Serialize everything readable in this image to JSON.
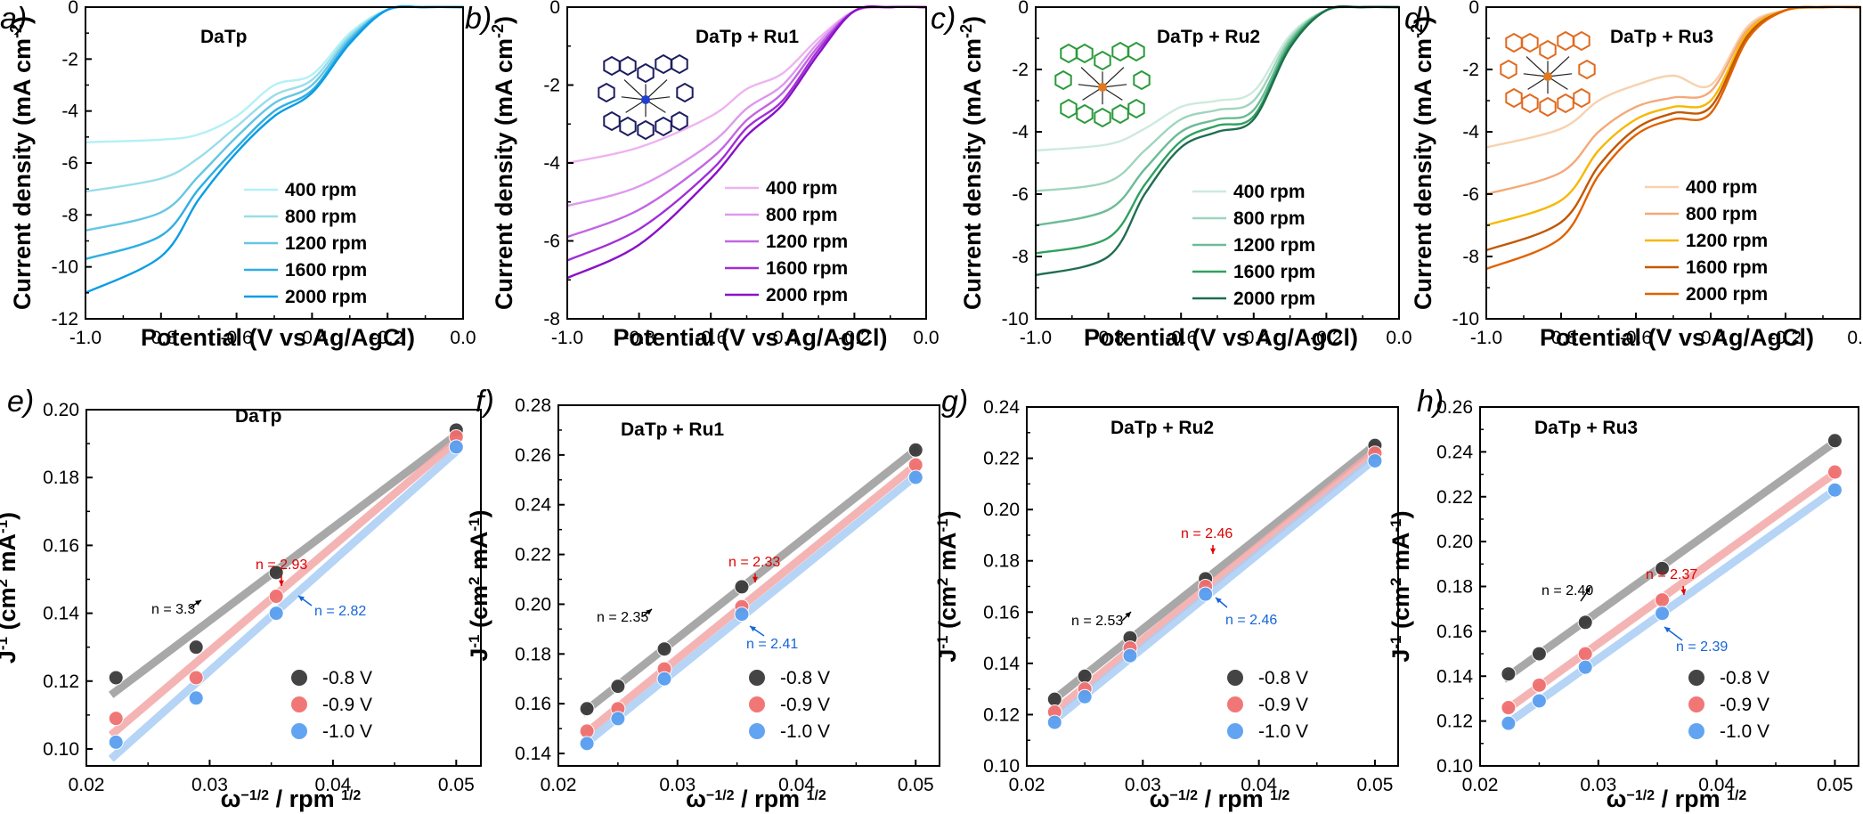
{
  "figure": {
    "panels_top": [
      {
        "letter": "a)",
        "title": "DaTp",
        "series_names": [
          "400 rpm",
          "800 rpm",
          "1200 rpm",
          "1600 rpm",
          "2000 rpm"
        ],
        "colors": [
          "#b3f0f7",
          "#99ddea",
          "#66c6e4",
          "#30aee3",
          "#0a9ce6"
        ],
        "yticks": [
          "0",
          "-2",
          "-4",
          "-6",
          "-8",
          "-10",
          "-12"
        ],
        "ylim": [
          -12,
          0
        ],
        "limits": [
          -5.2,
          -7.1,
          -8.6,
          -9.7,
          -11.0
        ]
      },
      {
        "letter": "b)",
        "title": "DaTp  + Ru1",
        "series_names": [
          "400 rpm",
          "800 rpm",
          "1200 rpm",
          "1600 rpm",
          "2000 rpm"
        ],
        "colors": [
          "#eeb3f0",
          "#dd99ee",
          "#c266e2",
          "#a02fd6",
          "#8a10c8"
        ],
        "yticks": [
          "0",
          "-2",
          "-4",
          "-6",
          "-8"
        ],
        "ylim": [
          -8,
          0
        ],
        "limits": [
          -4.0,
          -5.1,
          -5.9,
          -6.5,
          -6.95
        ]
      },
      {
        "letter": "c)",
        "title": "DaTp  + Ru2",
        "series_names": [
          "400 rpm",
          "800 rpm",
          "1200 rpm",
          "1600 rpm",
          "2000 rpm"
        ],
        "colors": [
          "#cdeadd",
          "#9fd4bd",
          "#6dbb97",
          "#2fa15f",
          "#1f6e4f"
        ],
        "yticks": [
          "0",
          "-2",
          "-4",
          "-6",
          "-8",
          "-10"
        ],
        "ylim": [
          -10,
          0
        ],
        "limits": [
          -4.6,
          -5.9,
          -7.0,
          -7.9,
          -8.6
        ]
      },
      {
        "letter": "d)",
        "title": "DaTp  + Ru3",
        "series_names": [
          "400 rpm",
          "800 rpm",
          "1200 rpm",
          "1600 rpm",
          "2000 rpm"
        ],
        "colors": [
          "#f7d1ad",
          "#f4a978",
          "#f6b800",
          "#c25800",
          "#e06200"
        ],
        "yticks": [
          "0",
          "-2",
          "-4",
          "-6",
          "-8",
          "-10"
        ],
        "ylim": [
          -10,
          0
        ],
        "limits": [
          -4.5,
          -6.0,
          -7.0,
          -7.8,
          -8.4
        ]
      }
    ],
    "top_xticks": [
      "-1.0",
      "-0.8",
      "-0.6",
      "-0.4",
      "-0.2",
      "0.0"
    ],
    "top_xlabel": "Potential (V vs Ag/AgCl)",
    "top_ylabel": "Current density (mA cm",
    "top_ylabel_sup": "-2",
    "top_ylabel_close": ")",
    "panels_bottom": [
      {
        "letter": "e)",
        "title": "DaTp",
        "yticks": [
          "0.10",
          "0.12",
          "0.14",
          "0.16",
          "0.18",
          "0.20"
        ],
        "ylim": [
          0.095,
          0.2
        ],
        "n_labels": {
          "black": "n = 3.3",
          "red": "n = 2.93",
          "blue": "n = 2.82"
        }
      },
      {
        "letter": "f)",
        "title": "DaTp + Ru1",
        "yticks": [
          "0.14",
          "0.16",
          "0.18",
          "0.20",
          "0.22",
          "0.24",
          "0.26",
          "0.28"
        ],
        "ylim": [
          0.135,
          0.28
        ],
        "n_labels": {
          "black": "n = 2.35",
          "red": "n = 2.33",
          "blue": "n = 2.41"
        }
      },
      {
        "letter": "g)",
        "title": "DaTp + Ru2",
        "yticks": [
          "0.10",
          "0.12",
          "0.14",
          "0.16",
          "0.18",
          "0.20",
          "0.22",
          "0.24"
        ],
        "ylim": [
          0.1,
          0.24
        ],
        "n_labels": {
          "black": "n = 2.53",
          "red": "n = 2.46",
          "blue": "n = 2.46"
        }
      },
      {
        "letter": "h)",
        "title": "DaTp + Ru3",
        "yticks": [
          "0.10",
          "0.12",
          "0.14",
          "0.16",
          "0.18",
          "0.20",
          "0.22",
          "0.24",
          "0.26"
        ],
        "ylim": [
          0.1,
          0.26
        ],
        "n_labels": {
          "black": "n = 2.40",
          "red": "n = 2.37",
          "blue": "n = 2.39"
        }
      }
    ],
    "bottom_xticks": [
      "0.02",
      "0.03",
      "0.04",
      "0.05"
    ],
    "bottom_xlabel_main": "ω",
    "bottom_xlabel_sup": "−1/2",
    "bottom_xlabel_rest": " / rpm ",
    "bottom_xlabel_sup2": "1/2",
    "bottom_ylabel_main": "J",
    "bottom_ylabel_sup": "-1",
    "bottom_ylabel_rest": " (cm",
    "bottom_ylabel_sup2": "2",
    "bottom_ylabel_rest2": " mA",
    "bottom_ylabel_sup3": "-1",
    "bottom_ylabel_close": ")",
    "bottom_legend": [
      "-0.8 V",
      "-0.9 V",
      "-1.0 V"
    ],
    "bottom_colors": {
      "black": "#3a3a3a",
      "red": "#f07070",
      "blue": "#5a9ff0",
      "line_black": "#9a9a9a",
      "line_red": "#f4a8a8",
      "line_blue": "#a9cdf5",
      "n_black": "#000000",
      "n_red": "#e00000",
      "n_blue": "#1565d8"
    }
  },
  "chart_data": [
    {
      "type": "line",
      "title": "DaTp",
      "xlabel": "Potential (V vs Ag/AgCl)",
      "ylabel": "Current density (mA cm-2)",
      "xlim": [
        -1.0,
        0.0
      ],
      "ylim": [
        -12,
        0
      ],
      "series": [
        {
          "name": "400 rpm",
          "x": [
            -1.0,
            -0.8,
            -0.7,
            -0.6,
            -0.5,
            -0.4,
            -0.3,
            -0.2,
            -0.1,
            0.0
          ],
          "values": [
            -5.2,
            -5.1,
            -4.9,
            -4.2,
            -3.0,
            -2.6,
            -1.0,
            -0.1,
            0.0,
            0.0
          ]
        },
        {
          "name": "800 rpm",
          "x": [
            -1.0,
            -0.8,
            -0.7,
            -0.6,
            -0.5,
            -0.4,
            -0.3,
            -0.2,
            -0.1,
            0.0
          ],
          "values": [
            -7.1,
            -6.6,
            -5.8,
            -4.6,
            -3.4,
            -2.8,
            -1.1,
            -0.1,
            0.0,
            0.0
          ]
        },
        {
          "name": "1200 rpm",
          "x": [
            -1.0,
            -0.8,
            -0.7,
            -0.6,
            -0.5,
            -0.4,
            -0.3,
            -0.2,
            -0.1,
            0.0
          ],
          "values": [
            -8.6,
            -7.9,
            -6.5,
            -5.0,
            -3.7,
            -3.0,
            -1.2,
            -0.1,
            0.0,
            0.0
          ]
        },
        {
          "name": "1600 rpm",
          "x": [
            -1.0,
            -0.8,
            -0.7,
            -0.6,
            -0.5,
            -0.4,
            -0.3,
            -0.2,
            -0.1,
            0.0
          ],
          "values": [
            -9.7,
            -8.8,
            -7.0,
            -5.4,
            -4.0,
            -3.2,
            -1.3,
            -0.1,
            0.0,
            0.0
          ]
        },
        {
          "name": "2000 rpm",
          "x": [
            -1.0,
            -0.8,
            -0.7,
            -0.6,
            -0.5,
            -0.4,
            -0.3,
            -0.2,
            -0.1,
            0.0
          ],
          "values": [
            -11.0,
            -9.6,
            -7.4,
            -5.6,
            -4.2,
            -3.3,
            -1.4,
            -0.1,
            0.0,
            0.0
          ]
        }
      ]
    },
    {
      "type": "line",
      "title": "DaTp  + Ru1",
      "xlabel": "Potential (V vs Ag/AgCl)",
      "ylabel": "Current density (mA cm-2)",
      "xlim": [
        -1.0,
        0.0
      ],
      "ylim": [
        -8,
        0
      ],
      "series": [
        {
          "name": "400 rpm",
          "x": [
            -1.0,
            -0.8,
            -0.6,
            -0.5,
            -0.4,
            -0.3,
            -0.2,
            -0.1,
            0.0
          ],
          "values": [
            -4.0,
            -3.6,
            -2.8,
            -2.1,
            -1.7,
            -0.8,
            -0.1,
            0.0,
            0.0
          ]
        },
        {
          "name": "800 rpm",
          "x": [
            -1.0,
            -0.8,
            -0.6,
            -0.5,
            -0.4,
            -0.3,
            -0.2,
            -0.1,
            0.0
          ],
          "values": [
            -5.1,
            -4.6,
            -3.5,
            -2.6,
            -2.0,
            -0.9,
            -0.1,
            0.0,
            0.0
          ]
        },
        {
          "name": "1200 rpm",
          "x": [
            -1.0,
            -0.8,
            -0.6,
            -0.5,
            -0.4,
            -0.3,
            -0.2,
            -0.1,
            0.0
          ],
          "values": [
            -5.9,
            -5.2,
            -3.9,
            -2.9,
            -2.2,
            -1.0,
            -0.1,
            0.0,
            0.0
          ]
        },
        {
          "name": "1600 rpm",
          "x": [
            -1.0,
            -0.8,
            -0.6,
            -0.5,
            -0.4,
            -0.3,
            -0.2,
            -0.1,
            0.0
          ],
          "values": [
            -6.5,
            -5.7,
            -4.2,
            -3.1,
            -2.4,
            -1.1,
            -0.1,
            0.0,
            0.0
          ]
        },
        {
          "name": "2000 rpm",
          "x": [
            -1.0,
            -0.8,
            -0.6,
            -0.5,
            -0.4,
            -0.3,
            -0.2,
            -0.1,
            0.0
          ],
          "values": [
            -6.95,
            -6.1,
            -4.4,
            -3.3,
            -2.5,
            -1.2,
            -0.1,
            0.0,
            0.0
          ]
        }
      ]
    },
    {
      "type": "line",
      "title": "DaTp  + Ru2",
      "xlabel": "Potential (V vs Ag/AgCl)",
      "ylabel": "Current density (mA cm-2)",
      "xlim": [
        -1.0,
        0.0
      ],
      "ylim": [
        -10,
        0
      ],
      "series": [
        {
          "name": "400 rpm",
          "x": [
            -1.0,
            -0.8,
            -0.7,
            -0.6,
            -0.5,
            -0.4,
            -0.3,
            -0.2,
            -0.1,
            0.0
          ],
          "values": [
            -4.6,
            -4.4,
            -3.9,
            -3.2,
            -3.0,
            -2.7,
            -0.9,
            -0.1,
            0.0,
            0.0
          ]
        },
        {
          "name": "800 rpm",
          "x": [
            -1.0,
            -0.8,
            -0.7,
            -0.6,
            -0.5,
            -0.4,
            -0.3,
            -0.2,
            -0.1,
            0.0
          ],
          "values": [
            -5.9,
            -5.6,
            -4.6,
            -3.6,
            -3.3,
            -3.0,
            -1.0,
            -0.1,
            0.0,
            0.0
          ]
        },
        {
          "name": "1200 rpm",
          "x": [
            -1.0,
            -0.8,
            -0.7,
            -0.6,
            -0.5,
            -0.4,
            -0.3,
            -0.2,
            -0.1,
            0.0
          ],
          "values": [
            -7.0,
            -6.5,
            -5.2,
            -4.0,
            -3.6,
            -3.3,
            -1.1,
            -0.1,
            0.0,
            0.0
          ]
        },
        {
          "name": "1600 rpm",
          "x": [
            -1.0,
            -0.8,
            -0.7,
            -0.6,
            -0.5,
            -0.4,
            -0.3,
            -0.2,
            -0.1,
            0.0
          ],
          "values": [
            -7.9,
            -7.4,
            -5.7,
            -4.3,
            -3.8,
            -3.5,
            -1.2,
            -0.1,
            0.0,
            0.0
          ]
        },
        {
          "name": "2000 rpm",
          "x": [
            -1.0,
            -0.8,
            -0.7,
            -0.6,
            -0.5,
            -0.4,
            -0.3,
            -0.2,
            -0.1,
            0.0
          ],
          "values": [
            -8.6,
            -8.0,
            -6.0,
            -4.5,
            -4.0,
            -3.6,
            -1.3,
            -0.1,
            0.0,
            0.0
          ]
        }
      ]
    },
    {
      "type": "line",
      "title": "DaTp  + Ru3",
      "xlabel": "Potential (V vs Ag/AgCl)",
      "ylabel": "Current density (mA cm-2)",
      "xlim": [
        -1.0,
        0.0
      ],
      "ylim": [
        -10,
        0
      ],
      "series": [
        {
          "name": "400 rpm",
          "x": [
            -1.0,
            -0.8,
            -0.7,
            -0.6,
            -0.5,
            -0.4,
            -0.3,
            -0.2,
            -0.1,
            0.0
          ],
          "values": [
            -4.5,
            -3.9,
            -3.0,
            -2.5,
            -2.2,
            -2.5,
            -0.6,
            -0.1,
            0.0,
            0.0
          ]
        },
        {
          "name": "800 rpm",
          "x": [
            -1.0,
            -0.8,
            -0.7,
            -0.6,
            -0.5,
            -0.4,
            -0.3,
            -0.2,
            -0.1,
            0.0
          ],
          "values": [
            -6.0,
            -5.3,
            -4.0,
            -3.2,
            -2.9,
            -2.7,
            -0.7,
            -0.1,
            0.0,
            0.0
          ]
        },
        {
          "name": "1200 rpm",
          "x": [
            -1.0,
            -0.8,
            -0.7,
            -0.6,
            -0.5,
            -0.4,
            -0.3,
            -0.2,
            -0.1,
            0.0
          ],
          "values": [
            -7.0,
            -6.2,
            -4.6,
            -3.6,
            -3.2,
            -3.0,
            -0.8,
            -0.1,
            0.0,
            0.0
          ]
        },
        {
          "name": "1600 rpm",
          "x": [
            -1.0,
            -0.8,
            -0.7,
            -0.6,
            -0.5,
            -0.4,
            -0.3,
            -0.2,
            -0.1,
            0.0
          ],
          "values": [
            -7.8,
            -6.9,
            -5.1,
            -3.9,
            -3.4,
            -3.2,
            -0.9,
            -0.1,
            0.0,
            0.0
          ]
        },
        {
          "name": "2000 rpm",
          "x": [
            -1.0,
            -0.8,
            -0.7,
            -0.6,
            -0.5,
            -0.4,
            -0.3,
            -0.2,
            -0.1,
            0.0
          ],
          "values": [
            -8.4,
            -7.4,
            -5.4,
            -4.1,
            -3.6,
            -3.4,
            -1.0,
            -0.1,
            0.0,
            0.0
          ]
        }
      ]
    },
    {
      "type": "scatter",
      "title": "DaTp",
      "xlabel": "ω−1/2 / rpm 1/2",
      "ylabel": "J-1 (cm2 mA-1)",
      "xlim": [
        0.02,
        0.052
      ],
      "ylim": [
        0.095,
        0.2
      ],
      "x": [
        0.0224,
        0.0289,
        0.0354,
        0.05
      ],
      "series": [
        {
          "name": "-0.8 V",
          "values": [
            0.121,
            0.13,
            0.152,
            0.194
          ]
        },
        {
          "name": "-0.9 V",
          "values": [
            0.109,
            0.121,
            0.145,
            0.192
          ]
        },
        {
          "name": "-1.0 V",
          "values": [
            0.102,
            0.115,
            0.14,
            0.189
          ]
        }
      ],
      "annotations": [
        "n = 3.3",
        "n = 2.93",
        "n = 2.82"
      ]
    },
    {
      "type": "scatter",
      "title": "DaTp + Ru1",
      "xlabel": "ω−1/2 / rpm 1/2",
      "ylabel": "J-1 (cm2 mA-1)",
      "xlim": [
        0.02,
        0.052
      ],
      "ylim": [
        0.135,
        0.28
      ],
      "x": [
        0.0224,
        0.025,
        0.0289,
        0.0354,
        0.05
      ],
      "series": [
        {
          "name": "-0.8 V",
          "values": [
            0.158,
            0.167,
            0.182,
            0.207,
            0.262
          ]
        },
        {
          "name": "-0.9 V",
          "values": [
            0.149,
            0.158,
            0.174,
            0.199,
            0.256
          ]
        },
        {
          "name": "-1.0 V",
          "values": [
            0.144,
            0.154,
            0.17,
            0.196,
            0.251
          ]
        }
      ],
      "annotations": [
        "n = 2.35",
        "n = 2.33",
        "n = 2.41"
      ]
    },
    {
      "type": "scatter",
      "title": "DaTp + Ru2",
      "xlabel": "ω−1/2 / rpm 1/2",
      "ylabel": "J-1 (cm2 mA-1)",
      "xlim": [
        0.02,
        0.052
      ],
      "ylim": [
        0.1,
        0.24
      ],
      "x": [
        0.0224,
        0.025,
        0.0289,
        0.0354,
        0.05
      ],
      "series": [
        {
          "name": "-0.8 V",
          "values": [
            0.126,
            0.135,
            0.15,
            0.173,
            0.225
          ]
        },
        {
          "name": "-0.9 V",
          "values": [
            0.121,
            0.13,
            0.146,
            0.17,
            0.222
          ]
        },
        {
          "name": "-1.0 V",
          "values": [
            0.117,
            0.127,
            0.143,
            0.167,
            0.219
          ]
        }
      ],
      "annotations": [
        "n = 2.53",
        "n = 2.46",
        "n = 2.46"
      ]
    },
    {
      "type": "scatter",
      "title": "DaTp + Ru3",
      "xlabel": "ω−1/2 / rpm 1/2",
      "ylabel": "J-1 (cm2 mA-1)",
      "xlim": [
        0.02,
        0.052
      ],
      "ylim": [
        0.1,
        0.26
      ],
      "x": [
        0.0224,
        0.025,
        0.0289,
        0.0354,
        0.05
      ],
      "series": [
        {
          "name": "-0.8 V",
          "values": [
            0.141,
            0.15,
            0.164,
            0.188,
            0.245
          ]
        },
        {
          "name": "-0.9 V",
          "values": [
            0.126,
            0.136,
            0.15,
            0.174,
            0.231
          ]
        },
        {
          "name": "-1.0 V",
          "values": [
            0.119,
            0.129,
            0.144,
            0.168,
            0.223
          ]
        }
      ],
      "annotations": [
        "n = 2.40",
        "n = 2.37",
        "n = 2.39"
      ]
    }
  ]
}
